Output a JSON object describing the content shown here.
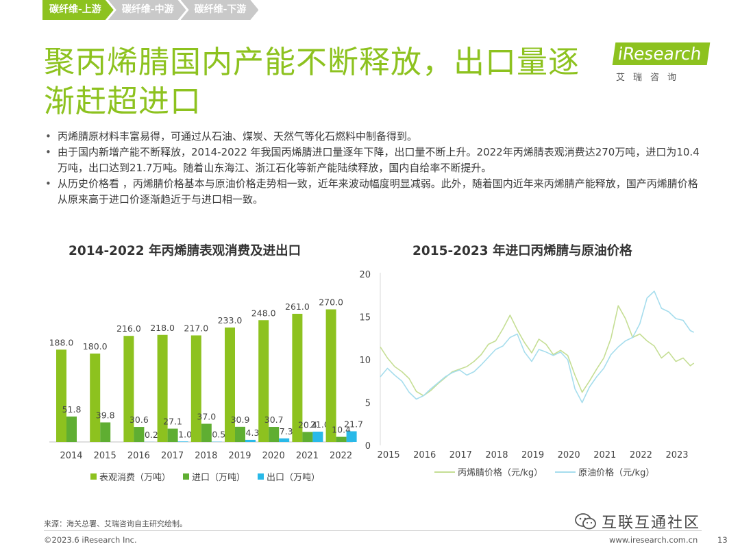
{
  "tabs": [
    "碳纤维-上游",
    "碳纤维-中游",
    "碳纤维-下游"
  ],
  "title": "聚丙烯腈国内产能不断释放，出口量逐渐赶超进口",
  "logo": {
    "word": "iResearch",
    "sub": "艾瑞咨询"
  },
  "bullets": [
    "丙烯腈原材料丰富易得，可通过从石油、煤炭、天然气等化石燃料中制备得到。",
    "由于国内新增产能不断释放，2014-2022 年我国丙烯腈进口量逐年下降，出口量不断上升。2022年丙烯腈表观消费达270万吨，进口为10.4万吨，出口达到21.7万吨。随着山东海江、浙江石化等新产能陆续释放，国内自给率不断提升。",
    "从历史价格看 ，丙烯腈价格基本与原油价格走势相一致，近年来波动幅度明显减弱。此外，随着国内近年来丙烯腈产能释放，国产丙烯腈价格从原来高于进口价逐渐趋近于与进口相一致。"
  ],
  "colors": {
    "accent": "#8dc21f",
    "consumption": "#8dc21f",
    "import": "#5fae32",
    "export": "#29b9e8",
    "acrylonitrile_line": "#c5de94",
    "crude_line": "#a6dded"
  },
  "chart_data": [
    {
      "type": "bar",
      "title": "2014-2022 年丙烯腈表观消费及进出口",
      "categories": [
        "2014",
        "2015",
        "2016",
        "2017",
        "2018",
        "2019",
        "2020",
        "2021",
        "2022"
      ],
      "series": [
        {
          "name": "表观消费（万吨）",
          "values": [
            188.0,
            180.0,
            216.0,
            218.0,
            217.0,
            233.0,
            248.0,
            261.0,
            270.0
          ],
          "labels": [
            "188.0",
            "180.0",
            "216.0",
            "218.0",
            "217.0",
            "233.0",
            "248.0",
            "261.0",
            "270.0"
          ]
        },
        {
          "name": "进口（万吨）",
          "values": [
            51.8,
            39.8,
            30.6,
            27.1,
            37.0,
            30.9,
            30.7,
            20.4,
            10.4
          ],
          "labels": [
            "51.8",
            "39.8",
            "30.6",
            "27.1",
            "37.0",
            "30.9",
            "30.7",
            "20.4",
            "10.4"
          ]
        },
        {
          "name": "出口（万吨）",
          "values": [
            0,
            0,
            0.2,
            1.0,
            0.5,
            4.3,
            7.3,
            21.0,
            21.7
          ],
          "labels": [
            "",
            "",
            "0.2",
            "1.0",
            "0.5",
            "4.3",
            "7.3",
            "21.0",
            "21.7"
          ]
        }
      ],
      "ylim": [
        0,
        300
      ],
      "grid": false,
      "legend": "bottom"
    },
    {
      "type": "line",
      "title": "2015-2023 年进口丙烯腈与原油价格",
      "x_ticks": [
        "2015",
        "2016",
        "2017",
        "2018",
        "2019",
        "2020",
        "2021",
        "2022",
        "2023"
      ],
      "y_ticks": [
        "0",
        "5",
        "10",
        "15",
        "20"
      ],
      "ylim": [
        0,
        20
      ],
      "xlim": [
        2014.8,
        2023.6
      ],
      "series": [
        {
          "name": "丙烯腈价格（元/kg）",
          "x": [
            2014.8,
            2015.0,
            2015.2,
            2015.4,
            2015.6,
            2015.8,
            2016.0,
            2016.2,
            2016.4,
            2016.6,
            2016.8,
            2017.0,
            2017.2,
            2017.4,
            2017.6,
            2017.8,
            2018.0,
            2018.2,
            2018.4,
            2018.6,
            2018.8,
            2019.0,
            2019.2,
            2019.4,
            2019.6,
            2019.8,
            2020.0,
            2020.2,
            2020.4,
            2020.6,
            2020.8,
            2021.0,
            2021.2,
            2021.4,
            2021.6,
            2021.8,
            2022.0,
            2022.2,
            2022.4,
            2022.6,
            2022.8,
            2023.0,
            2023.2,
            2023.4,
            2023.5
          ],
          "y": [
            11.5,
            10.2,
            9.2,
            8.6,
            7.8,
            6.3,
            5.8,
            6.4,
            7.2,
            7.9,
            8.6,
            8.9,
            9.2,
            9.8,
            10.6,
            11.8,
            12.2,
            13.6,
            15.2,
            13.5,
            12.0,
            10.8,
            12.4,
            11.8,
            10.6,
            11.1,
            10.5,
            8.2,
            6.2,
            7.5,
            8.9,
            10.2,
            12.5,
            16.3,
            14.8,
            12.6,
            13.0,
            12.2,
            11.6,
            10.2,
            10.9,
            9.8,
            10.2,
            9.3,
            9.6
          ]
        },
        {
          "name": "原油价格（元/kg）",
          "x": [
            2014.8,
            2015.0,
            2015.2,
            2015.4,
            2015.6,
            2015.8,
            2016.0,
            2016.2,
            2016.4,
            2016.6,
            2016.8,
            2017.0,
            2017.2,
            2017.4,
            2017.6,
            2017.8,
            2018.0,
            2018.2,
            2018.4,
            2018.6,
            2018.8,
            2019.0,
            2019.2,
            2019.4,
            2019.6,
            2019.8,
            2020.0,
            2020.2,
            2020.4,
            2020.6,
            2020.8,
            2021.0,
            2021.2,
            2021.4,
            2021.6,
            2021.8,
            2022.0,
            2022.2,
            2022.4,
            2022.6,
            2022.8,
            2023.0,
            2023.2,
            2023.4,
            2023.5
          ],
          "y": [
            8.0,
            9.0,
            8.2,
            7.5,
            6.2,
            5.4,
            5.8,
            6.6,
            7.3,
            8.0,
            8.5,
            8.8,
            8.2,
            8.6,
            9.4,
            10.3,
            11.2,
            11.6,
            12.6,
            13.0,
            10.9,
            9.8,
            11.2,
            10.9,
            10.5,
            10.9,
            10.0,
            6.6,
            5.0,
            6.8,
            8.0,
            9.0,
            10.6,
            11.5,
            12.2,
            12.6,
            14.2,
            17.2,
            18.0,
            16.0,
            15.6,
            14.8,
            14.6,
            13.4,
            13.2
          ]
        }
      ],
      "grid": false,
      "legend": "bottom"
    }
  ],
  "source": "来源：海关总署、艾瑞咨询自主研究绘制。",
  "copyright": "©2023.6 iResearch Inc.",
  "site": "www.iresearch.com.cn",
  "page_number": "13",
  "watermark": "互联互通社区"
}
